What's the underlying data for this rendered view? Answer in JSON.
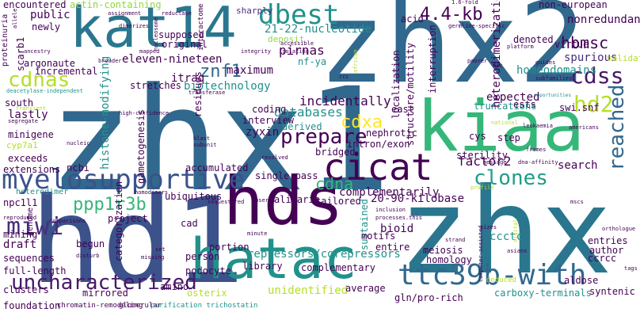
{
  "words": {
    "zhx1": "zhx1",
    "zhx2": "zhx2",
    "zhx": "zhx",
    "kiaa": "kiaa",
    "hd1": "hd1",
    "hds": "hds",
    "hatac": "hatac",
    "cicat": "cicat",
    "kat14": "kat14",
    "myelosupportive": "myelosupportive",
    "uncharacterized": "uncharacterized",
    "ttc39b_with": "ttc39b-with",
    "dbest": "dbest",
    "ppp1r3b": "ppp1r3b",
    "prepare": "prepare",
    "clones": "clones",
    "cdss": "cdss",
    "hd2": "hd2",
    "kb": "4.4-kb",
    "hbmsc": "hbmsc",
    "reached": "reached",
    "cdxa": "cdxa",
    "cdnas": "cdnas",
    "cdna": "cdna",
    "miwi": "miwi",
    "znf1": "znf1",
    "nucleotide": "21-22-nucleotide",
    "eleven": "eleven-nineteen",
    "piwi": "piwi",
    "hdm2p2": "hdm2-p2",
    "nefa": "nf-ya",
    "pirnas": "pirnas",
    "deposit": "deposit",
    "homeodomains": "homeodomains",
    "spurious": "spurious",
    "virtue": "virtue",
    "denoted": "denoted",
    "nonredundant": "nonredundant",
    "noneuropean": "non-european",
    "accommodate": "accommodate",
    "sharply": "sharply",
    "acid": "acid",
    "public": "public",
    "newly": "newly",
    "encountered": "encountered",
    "actin": "actin-containing",
    "supposed": "supposed",
    "original": "original",
    "interactome": "interactome",
    "itraq": "itraq",
    "maximum": "maximum",
    "stretches": "stretches",
    "biotechnology": "biotechnology",
    "histone": "histone-modifying",
    "residues": "residues",
    "incrementally": "incremental",
    "argonaute": "argonaute",
    "lastly": "lastly",
    "minigene": "minigene",
    "cyp7a1": "cyp7a1",
    "exceeds": "exceeds",
    "extensions": "extensions",
    "south": "south",
    "scarb1": "scarb1",
    "proteinuria": "proteinuria",
    "databases": "databases",
    "incidentally": "incidentally",
    "coding": "coding",
    "interview": "interview",
    "derived": "derived",
    "zyxin": "zyxin",
    "bridged": "bridged",
    "nephrotic": "nephrotic",
    "intron_exon": "intron/exon",
    "structure": "structure/motility",
    "localization": "localization",
    "interruption": "interruption",
    "east": "east",
    "expected": "expected",
    "truncations": "truncations",
    "heterodimerization": "heterodimerization",
    "ests": "ests",
    "swi_snf": "swi.snf",
    "cys": "cys",
    "step": "step",
    "factor2": "factor2",
    "search": "search",
    "complementarily": "complementarily",
    "kilobase": "20-90-kilobase",
    "accumulated": "accumulated",
    "single_pass": "single-pass",
    "alizarin": "alizarin",
    "tailored": "tailored",
    "gametogenesis": "gametogenesis",
    "ncbi": "ncbi",
    "npc1l1": "npc1l1",
    "ubiquitous": "ubiquitous",
    "heterodimer": "heterodimer",
    "project": "project",
    "cad": "cad",
    "mining": "mining",
    "genome": "genome",
    "draft": "draft",
    "begun": "begun",
    "sequences": "sequences",
    "full_length": "full-length",
    "clusters": "clusters",
    "mirrored": "mirrored",
    "amino": "amino",
    "osterix": "osterix",
    "categorization": "categorization",
    "podocyte": "podocyte",
    "person": "person",
    "portion": "portion",
    "repressors": "repressors/corepressors",
    "library": "library",
    "complementary": "complementary",
    "unidentified": "unidentified",
    "sustained": "sustained",
    "bioid": "bioid",
    "motifs": "motifs",
    "entire": "entire",
    "meiosis": "meiosis",
    "homology": "homology",
    "ccctc": "ccctc",
    "entries": "entries",
    "author": "author",
    "ccrcc": "ccrcc",
    "aldose": "aldose",
    "average": "average",
    "gln_pro": "gln/pro-rich",
    "carboxy": "carboxy-terminals",
    "syntenic": "syntenic",
    "sterility": "sterility",
    "validated": "validated",
    "foundation": "foundation",
    "chromatin": "chromatin-remodeling",
    "glomerular": "glomerular",
    "trichostatin": "purification trichostatin",
    "deduced": "deduced",
    "assignment": "assignment",
    "reductase": "reductase",
    "dimerizes": "dimerizes",
    "mapped": "mapped",
    "integrity": "integrity",
    "isolating": "isolating",
    "african": "african",
    "germline": "germline-specific",
    "platform": "platform",
    "poorer": "poorer",
    "rcc": "rcc",
    "msc": "msc",
    "guides": "guides",
    "subfamilies": "subfamilies",
    "opportunities": "opportunities",
    "deacetylase": "deacetylase-independent",
    "transferase": "transferase",
    "segregate": "segregate",
    "nucleic": "nucleic",
    "high_confidence": "high-confidence",
    "blast": "blast",
    "subunit": "subunit",
    "resolved": "resolved",
    "national": "national",
    "leukaemia": "leukaemia",
    "americans": "americans",
    "frames": "frames",
    "dna_affinity": "dna-affinity",
    "message": "message",
    "inserts": "inserts",
    "inclusion": "inclusion",
    "processes": "processes.this",
    "strand": "strand",
    "sizes": "sizes",
    "asians": "asians",
    "orthologue": "orthologue",
    "tags": "tags",
    "computer": "computer-assisted",
    "digital": "digital",
    "comparisons": "comparisons",
    "reproduced": "reproduced",
    "disturb": "disturb",
    "missing": "missing",
    "set": "set",
    "minute": "minute",
    "homodimers": "homodimers",
    "sequestered": "sequestered",
    "broader": "broader",
    "ancestry": "ancestry",
    "accessible": "accessible",
    "nucleosome": "nucleosome",
    "fold": "1.6-fold",
    "profile": "profile",
    "transient": "transient",
    "modulating": "modulating",
    "allele": "allele",
    "mscs": "mscs",
    "brd": "brd",
    "cleavage": "cleavage",
    "upstream": "upstream"
  }
}
